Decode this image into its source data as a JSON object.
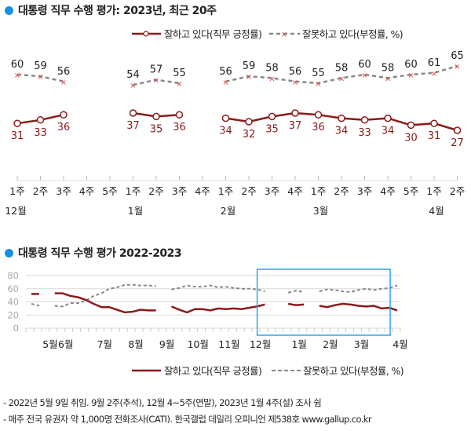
{
  "colors": {
    "positive": "#8b1a1a",
    "negative": "#888888",
    "accent": "#1591e6",
    "highlight_box": "#2aa6ea",
    "grid": "#d9d9d9"
  },
  "chart_data": [
    {
      "type": "line",
      "title": "대통령 직무 수행 평가: 2023년, 최근 20주",
      "legend_position": "top-right",
      "x": [
        "1주",
        "2주",
        "3주",
        "4주",
        "5주",
        "1주",
        "2주",
        "3주",
        "4주",
        "1주",
        "2주",
        "3주",
        "4주",
        "1주",
        "2주",
        "3주",
        "4주",
        "5주",
        "1주",
        "2주"
      ],
      "month_labels": [
        {
          "label": "12월",
          "week_index": 0
        },
        {
          "label": "1월",
          "week_index": 5
        },
        {
          "label": "2월",
          "week_index": 9
        },
        {
          "label": "3월",
          "week_index": 13
        },
        {
          "label": "4월",
          "week_index": 18
        }
      ],
      "series": [
        {
          "name": "잘하고 있다(직무 긍정률)",
          "values": [
            31,
            33,
            36,
            null,
            null,
            37,
            35,
            36,
            null,
            34,
            32,
            35,
            37,
            36,
            34,
            33,
            34,
            30,
            31,
            27
          ]
        },
        {
          "name": "잘못하고 있다(부정률, %)",
          "values": [
            60,
            59,
            56,
            null,
            null,
            54,
            57,
            55,
            null,
            56,
            59,
            58,
            56,
            55,
            58,
            60,
            58,
            60,
            61,
            65
          ]
        }
      ],
      "grid": false
    },
    {
      "type": "line",
      "title": "대통령 직무 수행 평가 2022-2023",
      "legend_position": "bottom-right",
      "ylim": [
        0,
        80
      ],
      "yticks": [
        0,
        20,
        40,
        60,
        80
      ],
      "month_labels": [
        {
          "label": "5월",
          "week_index": 1
        },
        {
          "label": "6월",
          "week_index": 3
        },
        {
          "label": "7월",
          "week_index": 8
        },
        {
          "label": "8월",
          "week_index": 12
        },
        {
          "label": "9월",
          "week_index": 16
        },
        {
          "label": "10월",
          "week_index": 20
        },
        {
          "label": "11월",
          "week_index": 24
        },
        {
          "label": "12월",
          "week_index": 28
        },
        {
          "label": "1월",
          "week_index": 33
        },
        {
          "label": "2월",
          "week_index": 37
        },
        {
          "label": "3월",
          "week_index": 41
        },
        {
          "label": "4월",
          "week_index": 46
        }
      ],
      "series": [
        {
          "name": "잘하고 있다(직무 긍정률)",
          "values": [
            52,
            52,
            null,
            53,
            53,
            49,
            47,
            43,
            37,
            32,
            32,
            28,
            24,
            25,
            28,
            27,
            27,
            null,
            33,
            28,
            24,
            29,
            29,
            27,
            30,
            29,
            30,
            29,
            31,
            33,
            36,
            null,
            null,
            37,
            35,
            36,
            null,
            34,
            32,
            35,
            37,
            36,
            34,
            33,
            34,
            30,
            31,
            27
          ]
        },
        {
          "name": "잘못하고 있다(부정률, %)",
          "values": [
            37,
            34,
            null,
            34,
            33,
            38,
            38,
            42,
            49,
            53,
            60,
            62,
            66,
            66,
            65,
            65,
            64,
            null,
            59,
            61,
            65,
            63,
            63,
            65,
            62,
            63,
            61,
            60,
            60,
            59,
            56,
            null,
            null,
            54,
            57,
            55,
            null,
            56,
            59,
            58,
            56,
            55,
            58,
            60,
            58,
            60,
            61,
            65
          ]
        }
      ],
      "highlight_range": "2022-12 1주 ~ 2023-04 2주",
      "grid": true
    }
  ],
  "notes": [
    "- 2022년 5월 9일 취임. 9월 2주(추석), 12월 4~5주(연말), 2023년 1월 4주(설) 조사 쉼",
    "- 매주 전국 유권자 약 1,000명 전화조사(CATI). 한국갤럽 데일리 오피니언 제538호 www.gallup.co.kr"
  ]
}
